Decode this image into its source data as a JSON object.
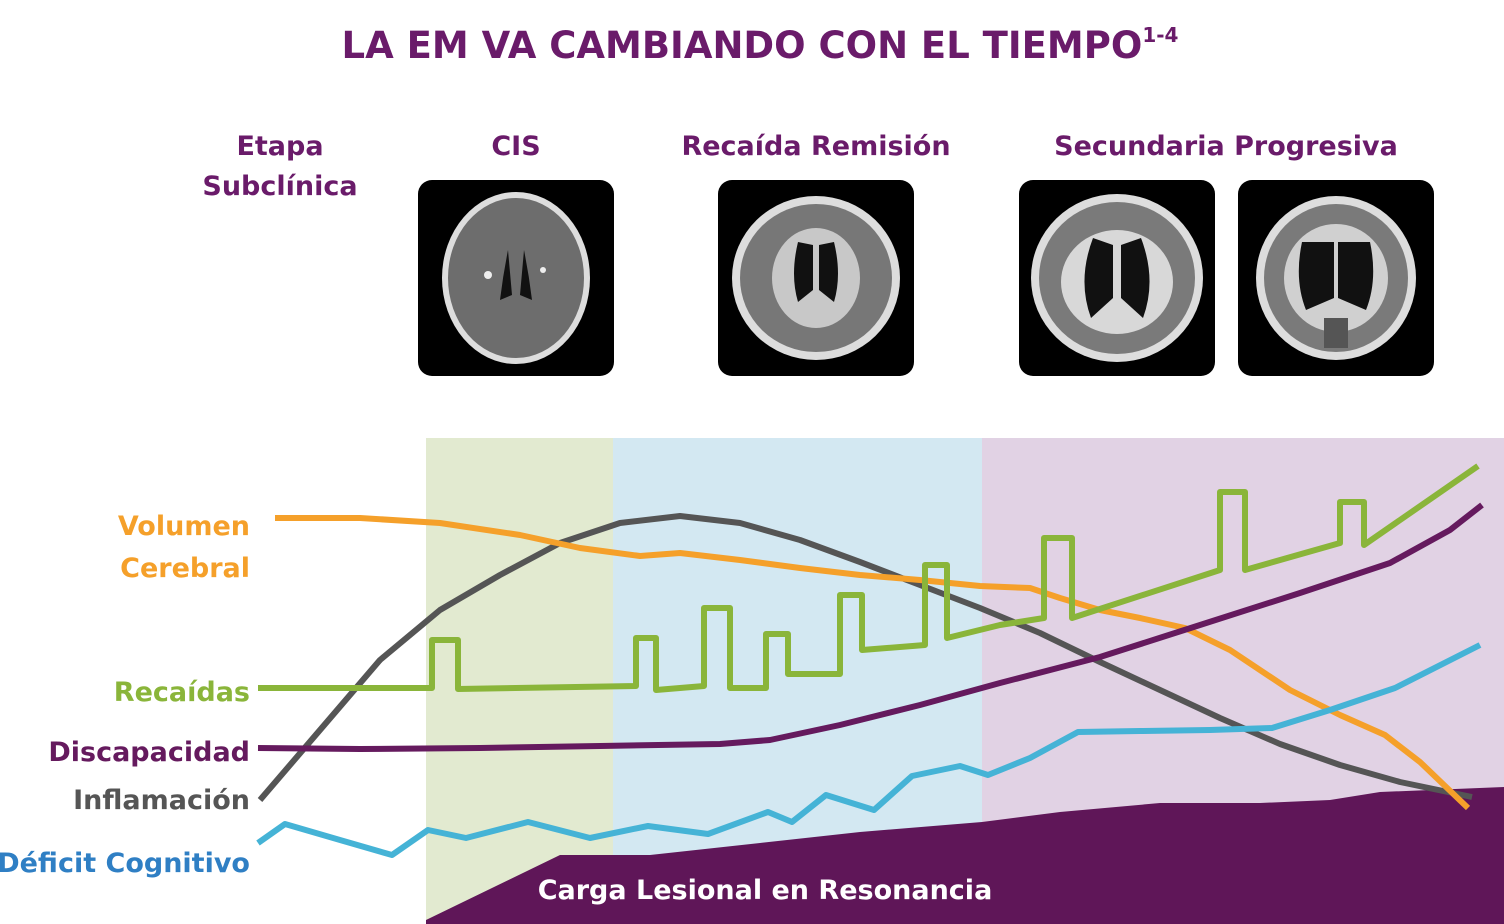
{
  "title": {
    "text": "LA EM VA CAMBIANDO CON EL TIEMPO",
    "superscript": "1-4"
  },
  "stages": [
    [
      "Etapa",
      "Subclínica"
    ],
    [
      "CIS"
    ],
    [
      "Recaída Remisión"
    ],
    [
      "Secundaria Progresiva"
    ]
  ],
  "curves": {
    "volumen": [
      "Volumen",
      "Cerebral"
    ],
    "recaidas": "Recaídas",
    "discapacidad": "Discapacidad",
    "inflamacion": "Inflamación",
    "deficit": "Déficit Cognitivo",
    "carga": "Carga Lesional en Resonancia"
  }
}
